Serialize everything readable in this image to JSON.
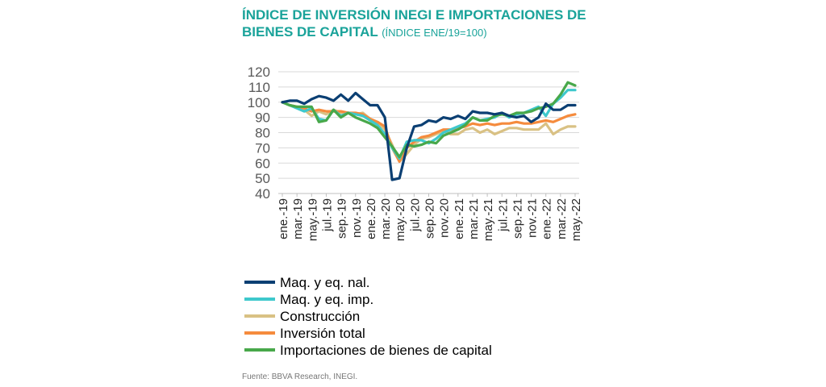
{
  "title_line1": "ÍNDICE DE INVERSIÓN INEGI E IMPORTACIONES DE",
  "title_line2": "BIENES DE CAPITAL",
  "subtitle": "(ÍNDICE ENE/19=100)",
  "source": "Fuente: BBVA Research, INEGI.",
  "chart_data": {
    "type": "line",
    "ylim": [
      40,
      120
    ],
    "yticks": [
      40,
      50,
      60,
      70,
      80,
      90,
      100,
      110,
      120
    ],
    "grid": "horizontal",
    "legend_position": "bottom",
    "x": [
      "ene.-19",
      "feb.-19",
      "mar.-19",
      "abr.-19",
      "may.-19",
      "jun.-19",
      "jul.-19",
      "ago.-19",
      "sep.-19",
      "oct.-19",
      "nov.-19",
      "dic.-19",
      "ene.-20",
      "feb.-20",
      "mar.-20",
      "abr.-20",
      "may.-20",
      "jun.-20",
      "jul.-20",
      "ago.-20",
      "sep.-20",
      "oct.-20",
      "nov.-20",
      "dic.-20",
      "ene.-21",
      "feb.-21",
      "mar.-21",
      "abr.-21",
      "may.-21",
      "jun.-21",
      "jul.-21",
      "ago.-21",
      "sep.-21",
      "oct.-21",
      "nov.-21",
      "dic.-21",
      "ene.-22",
      "feb.-22",
      "mar.-22",
      "abr.-22",
      "may.-22"
    ],
    "x_tick_labels": [
      "ene.-19",
      "mar.-19",
      "may.-19",
      "jul.-19",
      "sep.-19",
      "nov.-19",
      "ene.-20",
      "mar.-20",
      "may.-20",
      "jul.-20",
      "sep.-20",
      "nov.-20",
      "ene.-21",
      "mar.-21",
      "may.-21",
      "jul.-21",
      "sep.-21",
      "nov.-21",
      "ene.-22",
      "mar.-22",
      "may.-22"
    ],
    "series": [
      {
        "name": "Maq. y eq. nal.",
        "color": "#0b3f73",
        "values": [
          100,
          101,
          101,
          99,
          102,
          104,
          103,
          101,
          105,
          101,
          106,
          102,
          98,
          98,
          90,
          49,
          50,
          70,
          84,
          85,
          88,
          87,
          90,
          89,
          91,
          89,
          94,
          93,
          93,
          92,
          93,
          91,
          90,
          91,
          87,
          90,
          99,
          95,
          95,
          98,
          98
        ]
      },
      {
        "name": "Maq. y eq. imp.",
        "color": "#3ec8cc",
        "values": [
          100,
          98,
          96,
          94,
          96,
          89,
          88,
          95,
          91,
          93,
          92,
          91,
          88,
          85,
          79,
          70,
          63,
          74,
          75,
          75,
          73,
          76,
          80,
          82,
          84,
          86,
          90,
          88,
          89,
          90,
          93,
          90,
          92,
          93,
          95,
          97,
          91,
          99,
          103,
          108,
          108
        ]
      },
      {
        "name": "Construcción",
        "color": "#d9c184",
        "values": [
          100,
          98,
          97,
          95,
          91,
          94,
          92,
          95,
          93,
          93,
          92,
          93,
          89,
          87,
          82,
          72,
          61,
          66,
          72,
          76,
          77,
          79,
          81,
          79,
          79,
          82,
          83,
          80,
          82,
          79,
          81,
          83,
          83,
          82,
          82,
          82,
          86,
          79,
          82,
          84,
          84
        ]
      },
      {
        "name": "Inversión total",
        "color": "#f58b3d",
        "values": [
          100,
          98,
          97,
          96,
          94,
          95,
          94,
          94,
          94,
          93,
          93,
          92,
          89,
          87,
          84,
          70,
          61,
          70,
          74,
          77,
          78,
          80,
          82,
          82,
          83,
          84,
          86,
          85,
          86,
          85,
          86,
          86,
          87,
          86,
          86,
          87,
          88,
          87,
          89,
          91,
          92
        ]
      },
      {
        "name": "Importaciones de bienes de capital",
        "color": "#48a84a",
        "values": [
          100,
          98,
          97,
          97,
          97,
          87,
          88,
          95,
          90,
          93,
          90,
          88,
          86,
          83,
          77,
          71,
          64,
          72,
          71,
          72,
          74,
          73,
          78,
          80,
          82,
          85,
          90,
          88,
          88,
          91,
          92,
          91,
          93,
          93,
          94,
          96,
          97,
          99,
          105,
          113,
          111
        ]
      }
    ]
  }
}
